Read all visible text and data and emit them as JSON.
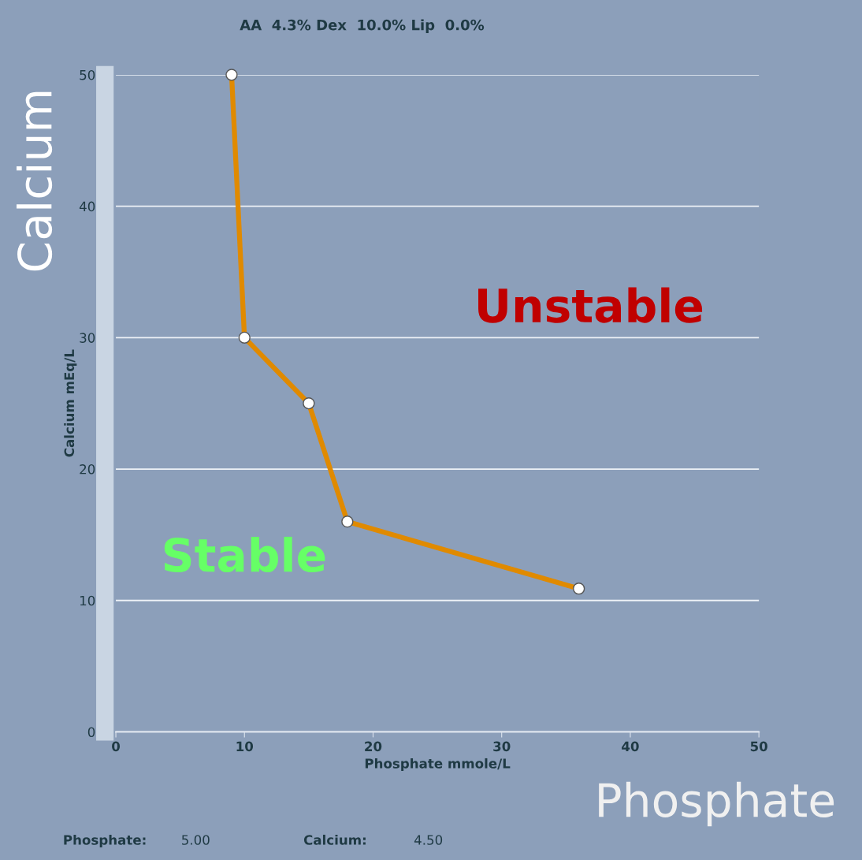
{
  "chart_data": {
    "type": "line",
    "title": "AA  4.3% Dex  10.0% Lip  0.0%",
    "xlabel": "Phosphate mmole/L",
    "ylabel": "Calcium mEq/L",
    "x": [
      9,
      10,
      15,
      18,
      36
    ],
    "series": [
      {
        "color": "#e08a00",
        "values": [
          50,
          30,
          25,
          16,
          10.9
        ]
      }
    ],
    "xlim": [
      0,
      50
    ],
    "ylim": [
      0,
      50
    ],
    "xticks": [
      0,
      10,
      20,
      30,
      40,
      50
    ],
    "yticks": [
      0,
      10,
      20,
      30,
      40,
      50
    ],
    "grid": "y",
    "marker": "circle",
    "line_style": "solid",
    "legend": false,
    "annotations": [
      "Unstable",
      "Stable",
      "Calcium",
      "Phosphate",
      "Phosphate:",
      "5.00",
      "Calcium:",
      "4.50"
    ]
  }
}
